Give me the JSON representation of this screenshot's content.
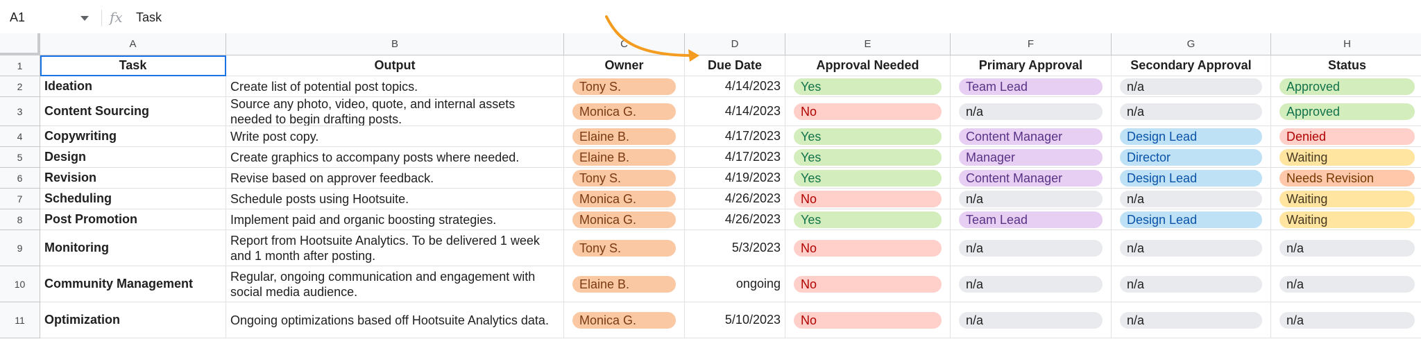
{
  "formula_bar": {
    "name_box": "A1",
    "fx_label": "fx",
    "formula": "Task"
  },
  "columns": [
    "A",
    "B",
    "C",
    "D",
    "E",
    "F",
    "G",
    "H"
  ],
  "header_row": {
    "row_number": "1",
    "cells": [
      "Task",
      "Output",
      "Owner",
      "Due Date",
      "Approval Needed",
      "Primary Approval",
      "Secondary Approval",
      "Status"
    ]
  },
  "rows": [
    {
      "n": "2",
      "task": "Ideation",
      "output": "Create list of potential post topics.",
      "owner": "Tony S.",
      "due": "4/14/2023",
      "approval": "Yes",
      "primary": "Team Lead",
      "secondary": "n/a",
      "status": "Approved"
    },
    {
      "n": "3",
      "task": "Content Sourcing",
      "output": "Source any photo, video, quote, and internal assets needed to begin drafting posts.",
      "owner": "Monica G.",
      "due": "4/14/2023",
      "approval": "No",
      "primary": "n/a",
      "secondary": "n/a",
      "status": "Approved"
    },
    {
      "n": "4",
      "task": "Copywriting",
      "output": "Write post copy.",
      "owner": "Elaine B.",
      "due": "4/17/2023",
      "approval": "Yes",
      "primary": "Content Manager",
      "secondary": "Design Lead",
      "status": "Denied"
    },
    {
      "n": "5",
      "task": "Design",
      "output": "Create graphics to accompany posts where needed.",
      "owner": "Elaine B.",
      "due": "4/17/2023",
      "approval": "Yes",
      "primary": "Manager",
      "secondary": "Director",
      "status": "Waiting"
    },
    {
      "n": "6",
      "task": "Revision",
      "output": "Revise based on approver feedback.",
      "owner": "Tony S.",
      "due": "4/19/2023",
      "approval": "Yes",
      "primary": "Content Manager",
      "secondary": "Design Lead",
      "status": "Needs Revision"
    },
    {
      "n": "7",
      "task": "Scheduling",
      "output": "Schedule posts using Hootsuite.",
      "owner": "Monica G.",
      "due": "4/26/2023",
      "approval": "No",
      "primary": "n/a",
      "secondary": "n/a",
      "status": "Waiting"
    },
    {
      "n": "8",
      "task": "Post Promotion",
      "output": "Implement paid and organic boosting strategies.",
      "owner": "Monica G.",
      "due": "4/26/2023",
      "approval": "Yes",
      "primary": "Team Lead",
      "secondary": "Design Lead",
      "status": "Waiting"
    },
    {
      "n": "9",
      "task": "Monitoring",
      "output": "Report from Hootsuite Analytics. To be delivered 1 week and 1 month after posting.",
      "owner": "Tony S.",
      "due": "5/3/2023",
      "approval": "No",
      "primary": "n/a",
      "secondary": "n/a",
      "status": "n/a"
    },
    {
      "n": "10",
      "task": "Community Management",
      "output": "Regular, ongoing communication and engagement with social media audience.",
      "owner": "Elaine B.",
      "due": "ongoing",
      "approval": "No",
      "primary": "n/a",
      "secondary": "n/a",
      "status": "n/a"
    },
    {
      "n": "11",
      "task": "Optimization",
      "output": "Ongoing optimizations based off Hootsuite Analytics data.",
      "owner": "Monica G.",
      "due": "5/10/2023",
      "approval": "No",
      "primary": "n/a",
      "secondary": "n/a",
      "status": "n/a"
    }
  ],
  "chip_colors": {
    "owner": {
      "bg": "#fbc8a4",
      "fg": "#7a3b12"
    },
    "Yes": {
      "bg": "#d4edbc",
      "fg": "#11734b"
    },
    "No": {
      "bg": "#ffcfc9",
      "fg": "#b10202"
    },
    "n/a": {
      "bg": "#e8eaed",
      "fg": "#1f1f1f"
    },
    "Team Lead": {
      "bg": "#e6cff2",
      "fg": "#5a3286"
    },
    "Content Manager": {
      "bg": "#e6cff2",
      "fg": "#5a3286"
    },
    "Manager": {
      "bg": "#e6cff2",
      "fg": "#5a3286"
    },
    "Design Lead": {
      "bg": "#bfe1f6",
      "fg": "#0a53a8"
    },
    "Director": {
      "bg": "#bfe1f6",
      "fg": "#0a53a8"
    },
    "Approved": {
      "bg": "#d4edbc",
      "fg": "#11734b"
    },
    "Denied": {
      "bg": "#ffcfc9",
      "fg": "#b10202"
    },
    "Waiting": {
      "bg": "#ffe5a0",
      "fg": "#473821"
    },
    "Needs Revision": {
      "bg": "#ffc8aa",
      "fg": "#753800"
    }
  },
  "annotation": {
    "arrow_icon": "curved-arrow-icon",
    "color": "#f39c1f"
  }
}
